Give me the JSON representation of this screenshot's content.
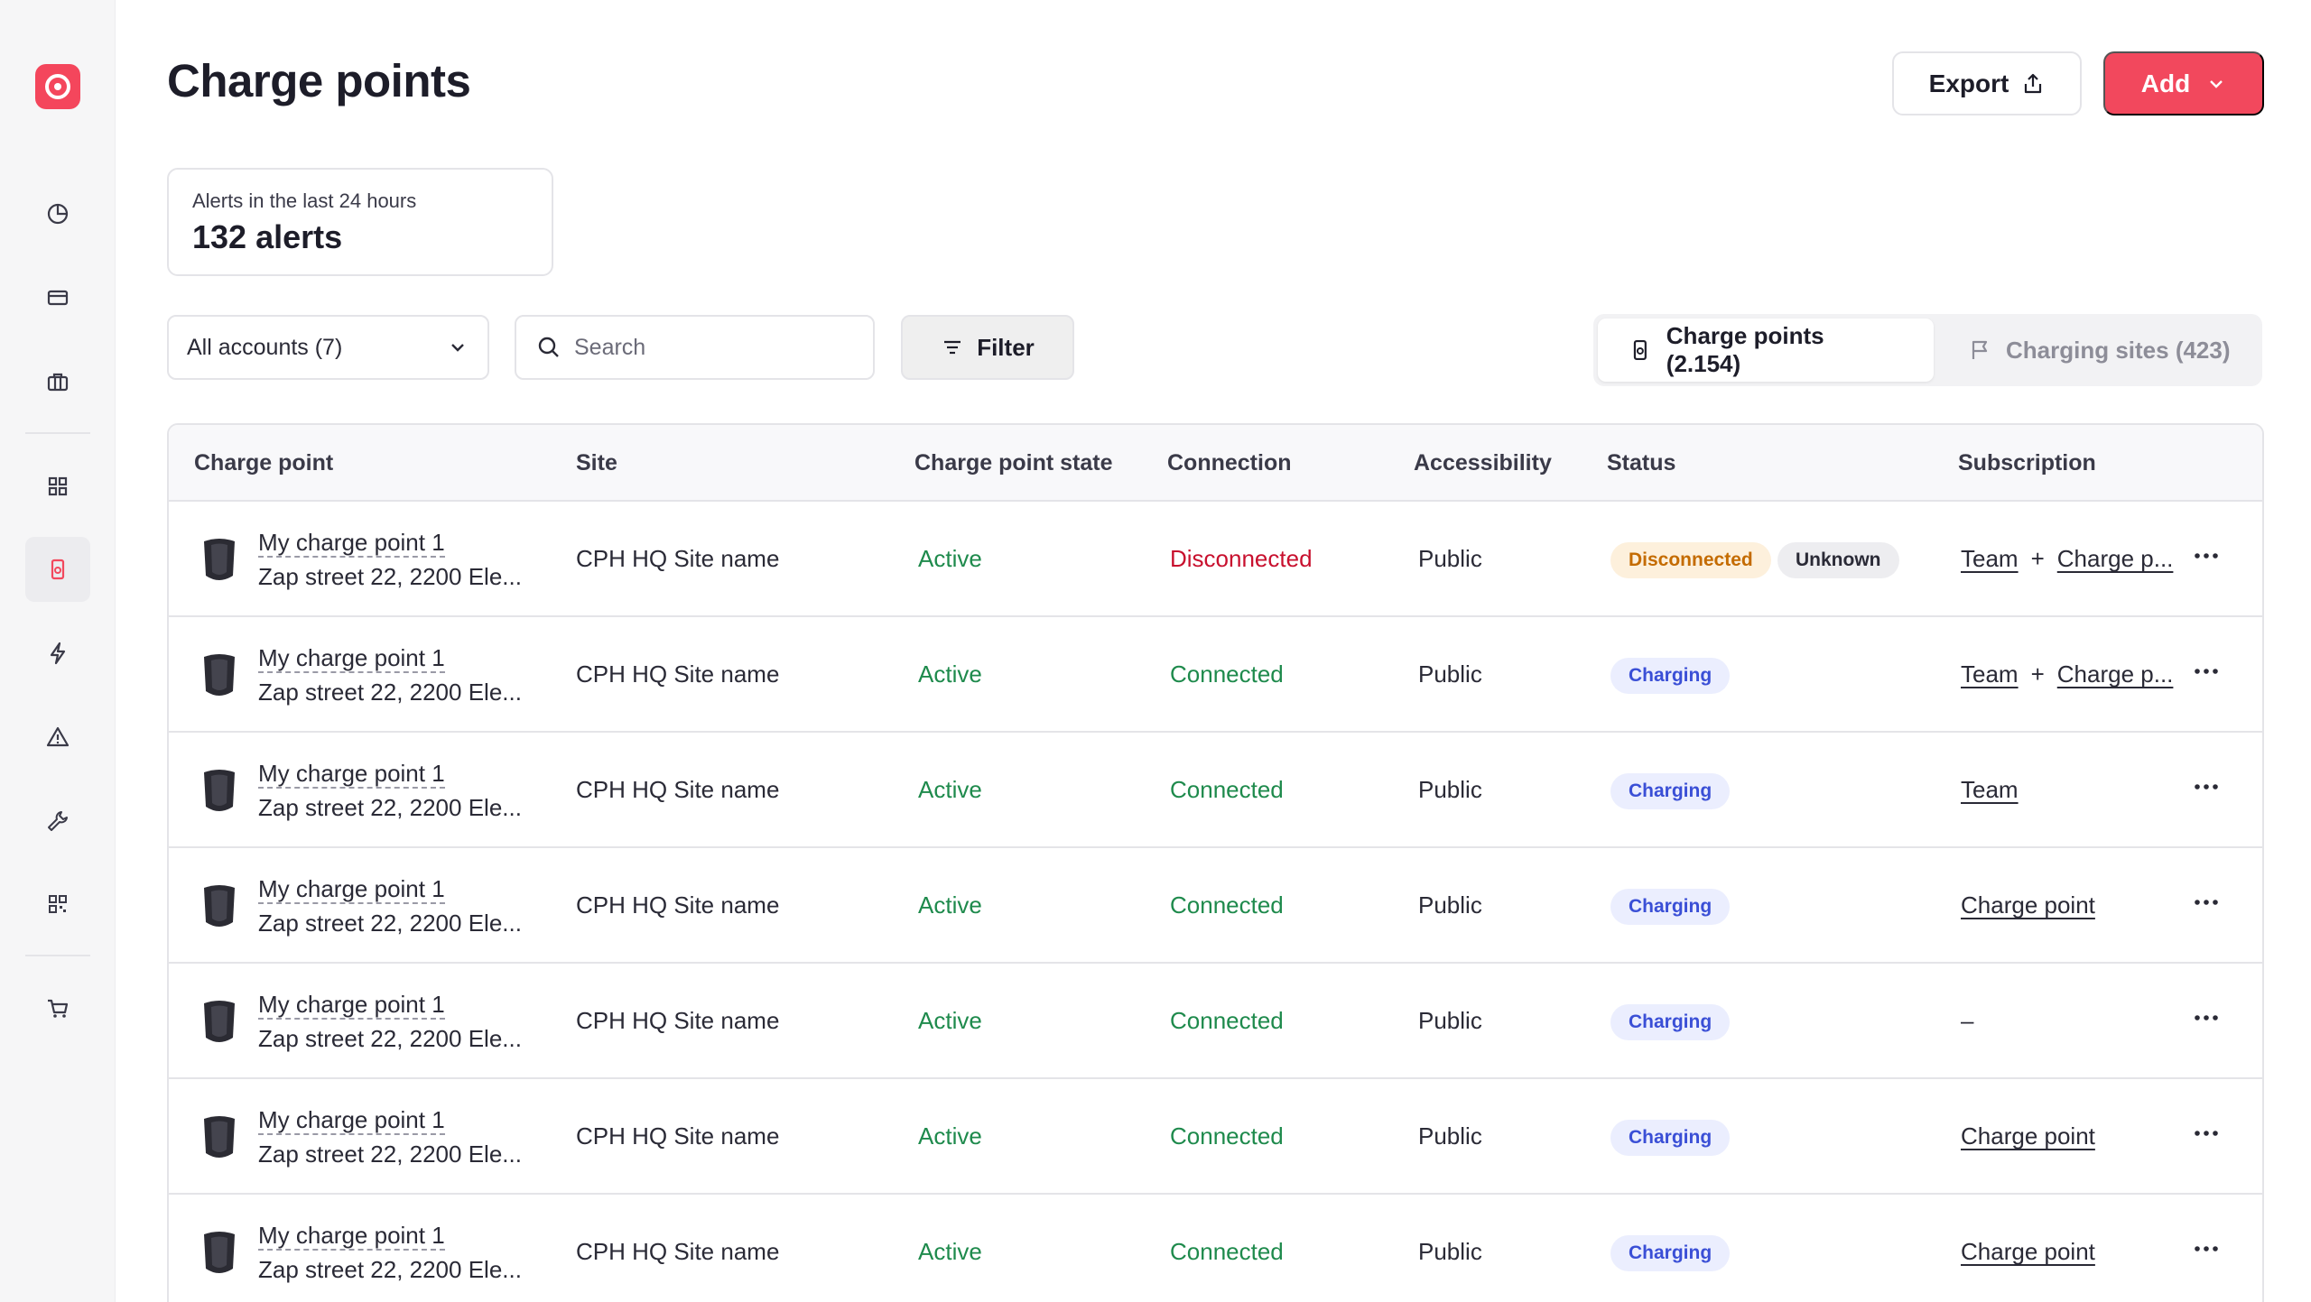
{
  "page": {
    "title": "Charge points",
    "export_label": "Export",
    "add_label": "Add"
  },
  "alerts": {
    "label": "Alerts in the last 24 hours",
    "value": "132 alerts"
  },
  "toolbar": {
    "accounts_selected": "All accounts (7)",
    "search_placeholder": "Search",
    "filter_label": "Filter"
  },
  "tabs": [
    {
      "label": "Charge points (2.154)",
      "active": true
    },
    {
      "label": "Charging sites (423)",
      "active": false
    }
  ],
  "table": {
    "columns": [
      "Charge point",
      "Site",
      "Charge point state",
      "Connection",
      "Accessibility",
      "Status",
      "Subscription"
    ],
    "rows": [
      {
        "name": "My charge point 1",
        "address": "Zap street 22, 2200 Ele...",
        "site": "CPH HQ Site name",
        "state": "Active",
        "connection": "Disconnected",
        "accessibility": "Public",
        "status": [
          "Disconnected",
          "Unknown"
        ],
        "subscription": [
          "Team",
          "Charge p..."
        ]
      },
      {
        "name": "My charge point 1",
        "address": "Zap street 22, 2200 Ele...",
        "site": "CPH HQ Site name",
        "state": "Active",
        "connection": "Connected",
        "accessibility": "Public",
        "status": [
          "Charging"
        ],
        "subscription": [
          "Team",
          "Charge p..."
        ]
      },
      {
        "name": "My charge point 1",
        "address": "Zap street 22, 2200 Ele...",
        "site": "CPH HQ Site name",
        "state": "Active",
        "connection": "Connected",
        "accessibility": "Public",
        "status": [
          "Charging"
        ],
        "subscription": [
          "Team"
        ]
      },
      {
        "name": "My charge point 1",
        "address": "Zap street 22, 2200 Ele...",
        "site": "CPH HQ Site name",
        "state": "Active",
        "connection": "Connected",
        "accessibility": "Public",
        "status": [
          "Charging"
        ],
        "subscription": [
          "Charge point"
        ]
      },
      {
        "name": "My charge point 1",
        "address": "Zap street 22, 2200 Ele...",
        "site": "CPH HQ Site name",
        "state": "Active",
        "connection": "Connected",
        "accessibility": "Public",
        "status": [
          "Charging"
        ],
        "subscription": [
          "–"
        ]
      },
      {
        "name": "My charge point 1",
        "address": "Zap street 22, 2200 Ele...",
        "site": "CPH HQ Site name",
        "state": "Active",
        "connection": "Connected",
        "accessibility": "Public",
        "status": [
          "Charging"
        ],
        "subscription": [
          "Charge point"
        ]
      },
      {
        "name": "My charge point 1",
        "address": "Zap street 22, 2200 Ele...",
        "site": "CPH HQ Site name",
        "state": "Active",
        "connection": "Connected",
        "accessibility": "Public",
        "status": [
          "Charging"
        ],
        "subscription": [
          "Charge point"
        ]
      }
    ]
  },
  "sidebar": {
    "items": [
      "dashboard-icon",
      "billing-icon",
      "briefcase-icon",
      "grid-icon",
      "charge-point-icon",
      "lightning-icon",
      "alert-icon",
      "wrench-icon",
      "qr-icon",
      "cart-icon"
    ],
    "active": "charge-point-icon"
  },
  "colors": {
    "brand": "#f2485d",
    "active_green": "#1e8a4c",
    "disconnected_red": "#c8102e",
    "badge_orange_bg": "#fdf0dc",
    "badge_blue_bg": "#ebeefe"
  }
}
